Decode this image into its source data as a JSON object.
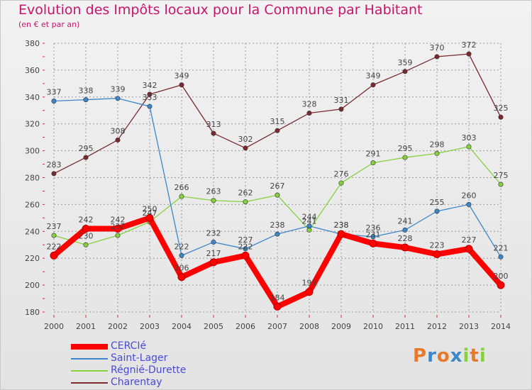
{
  "chart_data": {
    "type": "line",
    "title": "Evolution des Impôts locaux pour la Commune par Habitant",
    "subtitle": "(en € et par an)",
    "xlabel": "",
    "ylabel": "",
    "x": [
      "2000",
      "2001",
      "2002",
      "2003",
      "2004",
      "2005",
      "2006",
      "2007",
      "2008",
      "2009",
      "2010",
      "2011",
      "2012",
      "2013",
      "2014"
    ],
    "ylim": [
      180,
      380
    ],
    "yticks": [
      180,
      200,
      220,
      240,
      260,
      280,
      300,
      320,
      340,
      360,
      380
    ],
    "grid": true,
    "legend_position": "bottom-left",
    "series": [
      {
        "name": "CERCIé",
        "color": "#ff0000",
        "values": [
          222,
          242,
          242,
          250,
          206,
          217,
          222,
          184,
          195,
          238,
          231,
          228,
          223,
          227,
          200
        ]
      },
      {
        "name": "Saint-Lager",
        "color": "#3d87c9",
        "values": [
          337,
          338,
          339,
          333,
          222,
          232,
          227,
          238,
          244,
          238,
          236,
          241,
          255,
          260,
          221
        ]
      },
      {
        "name": "Régnié-Durette",
        "color": "#86d13e",
        "values": [
          237,
          230,
          237,
          247,
          266,
          263,
          262,
          267,
          241,
          276,
          291,
          295,
          298,
          303,
          275
        ]
      },
      {
        "name": "Charentay",
        "color": "#7a2a2e",
        "values": [
          283,
          295,
          308,
          342,
          349,
          313,
          302,
          315,
          328,
          331,
          349,
          359,
          370,
          372,
          325
        ]
      }
    ]
  },
  "logo": {
    "letters": [
      "P",
      "r",
      "o",
      "x",
      "i",
      "t",
      "i"
    ],
    "colors": [
      "#e8792a",
      "#3d87c9",
      "#e8792a",
      "#3d87c9",
      "#86d13e",
      "#e8792a",
      "#86d13e"
    ]
  }
}
